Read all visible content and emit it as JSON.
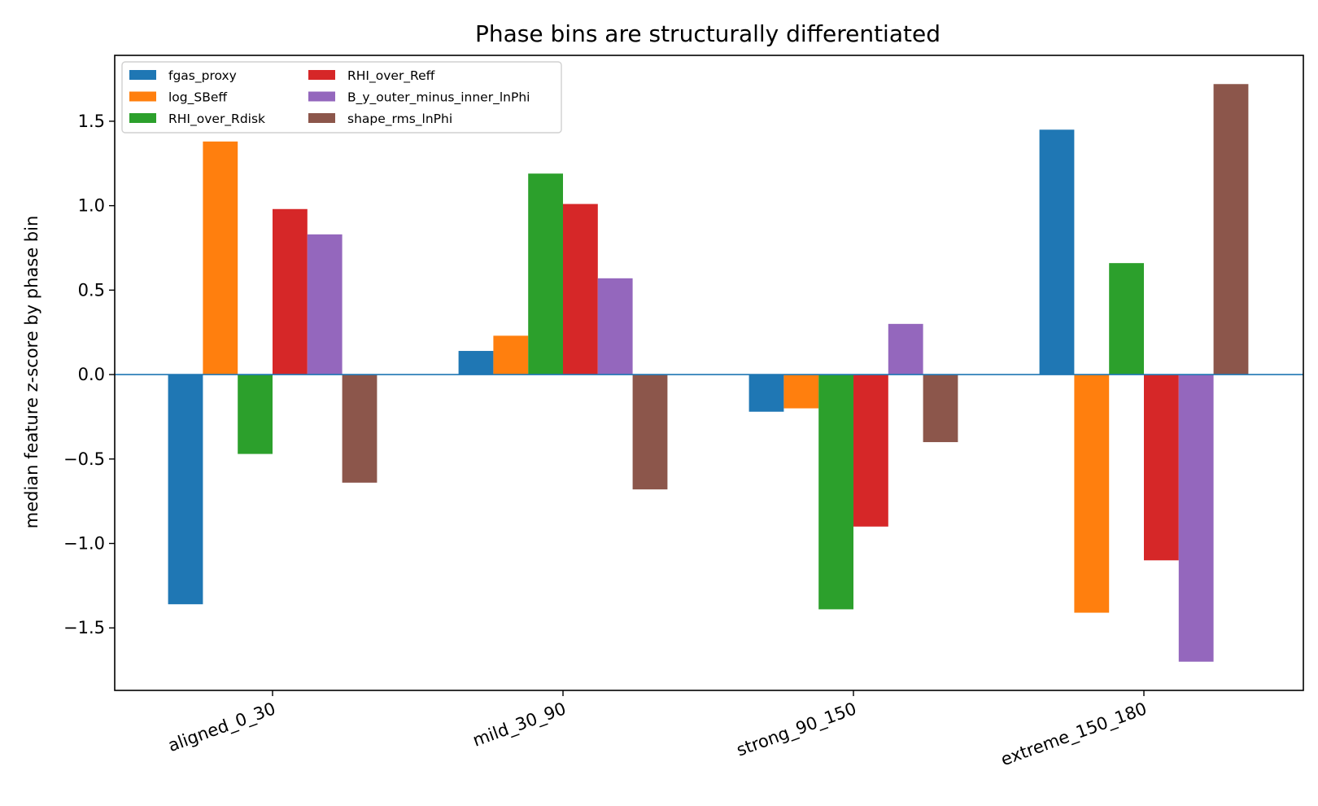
{
  "chart_data": {
    "type": "bar",
    "title": "Phase bins are structurally differentiated",
    "xlabel": "",
    "ylabel": "median feature z-score by phase bin",
    "categories": [
      "aligned_0_30",
      "mild_30_90",
      "strong_90_150",
      "extreme_150_180"
    ],
    "yticks": [
      "−1.5",
      "−1.0",
      "−0.5",
      "0.0",
      "0.5",
      "1.0",
      "1.5"
    ],
    "ylim": [
      -1.87,
      1.89
    ],
    "grid": false,
    "legend_position": "upper-left",
    "series": [
      {
        "name": "fgas_proxy",
        "color": "#1f77b4",
        "values": [
          -1.36,
          0.14,
          -0.22,
          1.45
        ]
      },
      {
        "name": "log_SBeff",
        "color": "#ff7f0e",
        "values": [
          1.38,
          0.23,
          -0.2,
          -1.41
        ]
      },
      {
        "name": "RHI_over_Rdisk",
        "color": "#2ca02c",
        "values": [
          -0.47,
          1.19,
          -1.39,
          0.66
        ]
      },
      {
        "name": "RHI_over_Reff",
        "color": "#d62728",
        "values": [
          0.98,
          1.01,
          -0.9,
          -1.1
        ]
      },
      {
        "name": "B_y_outer_minus_inner_lnPhi",
        "color": "#9467bd",
        "values": [
          0.83,
          0.57,
          0.3,
          -1.7
        ]
      },
      {
        "name": "shape_rms_lnPhi",
        "color": "#8c564b",
        "values": [
          -0.64,
          -0.68,
          -0.4,
          1.72
        ]
      }
    ]
  }
}
